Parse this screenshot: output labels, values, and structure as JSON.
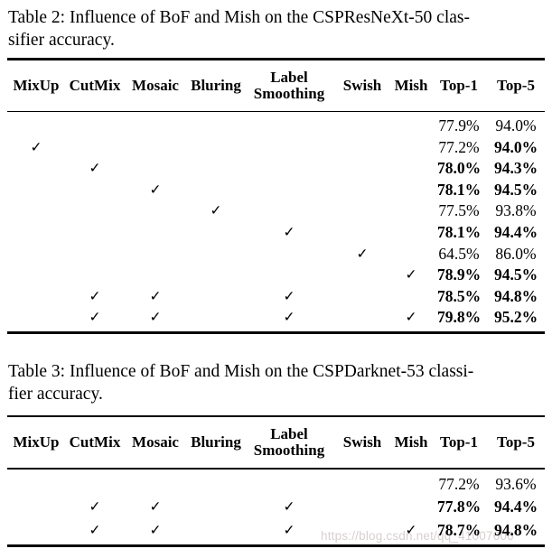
{
  "page": {
    "background": "#ffffff",
    "text_color": "#000000",
    "rule_color": "#000000"
  },
  "watermark": {
    "text": "https://blog.csdn.net/qq_41007606",
    "color": "#d9cfcf"
  },
  "header": {
    "columns": [
      "MixUp",
      "CutMix",
      "Mosaic",
      "Bluring",
      "Label Smoothing",
      "Swish",
      "Mish",
      "Top-1",
      "Top-5"
    ],
    "label_smoothing_line1": "Label",
    "label_smoothing_line2": "Smoothing",
    "check_glyph": "✓"
  },
  "table2": {
    "caption_line1": "Table 2: Influence of BoF and Mish on the CSPResNeXt-50 clas-",
    "caption_line2": "sifier accuracy.",
    "rows": [
      {
        "checks": [
          "",
          "",
          "",
          "",
          "",
          "",
          ""
        ],
        "top1": "77.9%",
        "top5": "94.0%",
        "b1": false,
        "b5": false
      },
      {
        "checks": [
          "✓",
          "",
          "",
          "",
          "",
          "",
          ""
        ],
        "top1": "77.2%",
        "top5": "94.0%",
        "b1": false,
        "b5": true
      },
      {
        "checks": [
          "",
          "✓",
          "",
          "",
          "",
          "",
          ""
        ],
        "top1": "78.0%",
        "top5": "94.3%",
        "b1": true,
        "b5": true
      },
      {
        "checks": [
          "",
          "",
          "✓",
          "",
          "",
          "",
          ""
        ],
        "top1": "78.1%",
        "top5": "94.5%",
        "b1": true,
        "b5": true
      },
      {
        "checks": [
          "",
          "",
          "",
          "✓",
          "",
          "",
          ""
        ],
        "top1": "77.5%",
        "top5": "93.8%",
        "b1": false,
        "b5": false
      },
      {
        "checks": [
          "",
          "",
          "",
          "",
          "✓",
          "",
          ""
        ],
        "top1": "78.1%",
        "top5": "94.4%",
        "b1": true,
        "b5": true
      },
      {
        "checks": [
          "",
          "",
          "",
          "",
          "",
          "✓",
          ""
        ],
        "top1": "64.5%",
        "top5": "86.0%",
        "b1": false,
        "b5": false
      },
      {
        "checks": [
          "",
          "",
          "",
          "",
          "",
          "",
          "✓"
        ],
        "top1": "78.9%",
        "top5": "94.5%",
        "b1": true,
        "b5": true
      },
      {
        "checks": [
          "",
          "✓",
          "✓",
          "",
          "✓",
          "",
          ""
        ],
        "top1": "78.5%",
        "top5": "94.8%",
        "b1": true,
        "b5": true
      },
      {
        "checks": [
          "",
          "✓",
          "✓",
          "",
          "✓",
          "",
          "✓"
        ],
        "top1": "79.8%",
        "top5": "95.2%",
        "b1": true,
        "b5": true
      }
    ]
  },
  "table3": {
    "caption_line1": "Table 3: Influence of BoF and Mish on the CSPDarknet-53 classi-",
    "caption_line2": "fier accuracy.",
    "rows": [
      {
        "checks": [
          "",
          "",
          "",
          "",
          "",
          "",
          ""
        ],
        "top1": "77.2%",
        "top5": "93.6%",
        "b1": false,
        "b5": false
      },
      {
        "checks": [
          "",
          "✓",
          "✓",
          "",
          "✓",
          "",
          ""
        ],
        "top1": "77.8%",
        "top5": "94.4%",
        "b1": true,
        "b5": true
      },
      {
        "checks": [
          "",
          "✓",
          "✓",
          "",
          "✓",
          "",
          "✓"
        ],
        "top1": "78.7%",
        "top5": "94.8%",
        "b1": true,
        "b5": true
      }
    ]
  }
}
